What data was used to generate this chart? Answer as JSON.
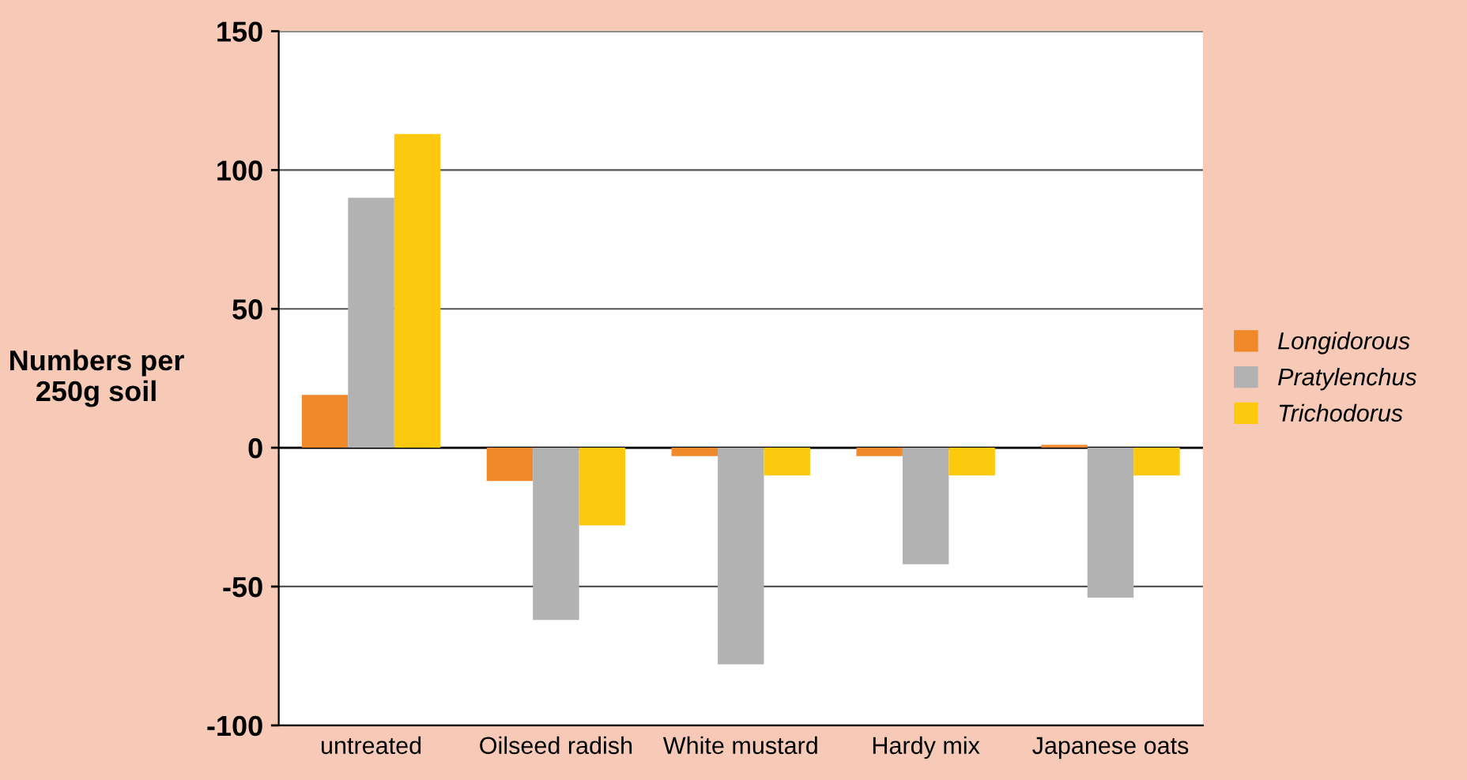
{
  "chart_data": {
    "type": "bar",
    "ylabel": "Numbers per\n250g soil",
    "categories": [
      "untreated",
      "Oilseed radish",
      "White mustard",
      "Hardy mix",
      "Japanese oats"
    ],
    "series": [
      {
        "name": "Longidorous",
        "color": "#f0892a",
        "values": [
          19,
          -12,
          -3,
          -3,
          1
        ]
      },
      {
        "name": "Pratylenchus",
        "color": "#b2b2b2",
        "values": [
          90,
          -62,
          -78,
          -42,
          -54
        ]
      },
      {
        "name": "Trichodorus",
        "color": "#fcc90f",
        "values": [
          113,
          -28,
          -10,
          -10,
          -10
        ]
      }
    ],
    "ylim": [
      -100,
      150
    ],
    "yticks": [
      -100,
      -50,
      0,
      50,
      100,
      150
    ],
    "grid": "y",
    "legend": "right"
  }
}
